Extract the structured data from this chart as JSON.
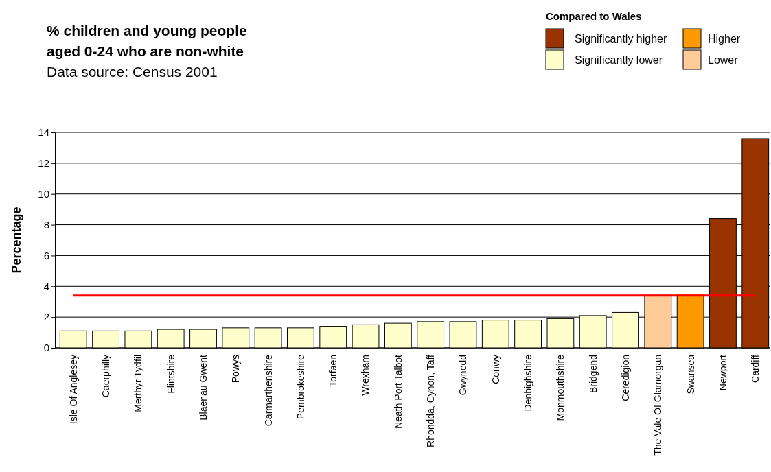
{
  "chart_data": {
    "type": "bar",
    "title": "% children and young people aged 0-24 who are non-white",
    "subtitle": "Data source: Census 2001",
    "ylabel": "Percentage",
    "legend_title": "Compared to Wales",
    "categories": [
      "Isle Of Anglesey",
      "Caerphilly",
      "Merthyr Tydfil",
      "Flintshire",
      "Blaenau Gwent",
      "Powys",
      "Carmarthenshire",
      "Pembrokeshire",
      "Torfaen",
      "Wrexham",
      "Neath Port Talbot",
      "Rhondda, Cynon, Taff",
      "Gwynedd",
      "Conwy",
      "Denbighshire",
      "Monmouthshire",
      "Bridgend",
      "Ceredigion",
      "The Vale Of Glamorgan",
      "Swansea",
      "Newport",
      "Cardiff"
    ],
    "series": [
      {
        "name": "Significantly higher",
        "color": "#993300",
        "values": [
          null,
          null,
          null,
          null,
          null,
          null,
          null,
          null,
          null,
          null,
          null,
          null,
          null,
          null,
          null,
          null,
          null,
          null,
          null,
          null,
          8.4,
          13.6
        ]
      },
      {
        "name": "Higher",
        "color": "#ff9900",
        "values": [
          null,
          null,
          null,
          null,
          null,
          null,
          null,
          null,
          null,
          null,
          null,
          null,
          null,
          null,
          null,
          null,
          null,
          null,
          null,
          3.5,
          null,
          null
        ]
      },
      {
        "name": "Significantly lower",
        "color": "#ffffcc",
        "values": [
          1.1,
          1.1,
          1.1,
          1.2,
          1.2,
          1.3,
          1.3,
          1.3,
          1.4,
          1.5,
          1.6,
          1.7,
          1.7,
          1.8,
          1.8,
          1.9,
          2.1,
          2.3,
          null,
          null,
          null,
          null
        ]
      },
      {
        "name": "Lower",
        "color": "#ffcc99",
        "values": [
          null,
          null,
          null,
          null,
          null,
          null,
          null,
          null,
          null,
          null,
          null,
          null,
          null,
          null,
          null,
          null,
          null,
          null,
          3.5,
          null,
          null,
          null
        ]
      }
    ],
    "ylim": [
      0,
      14
    ],
    "yticks": [
      0,
      2,
      4,
      6,
      8,
      10,
      12,
      14
    ],
    "grid": "y",
    "legend": "top right",
    "ref_lines": [
      {
        "axis": "y",
        "value": 3.4,
        "color": "#ff0000"
      }
    ]
  }
}
